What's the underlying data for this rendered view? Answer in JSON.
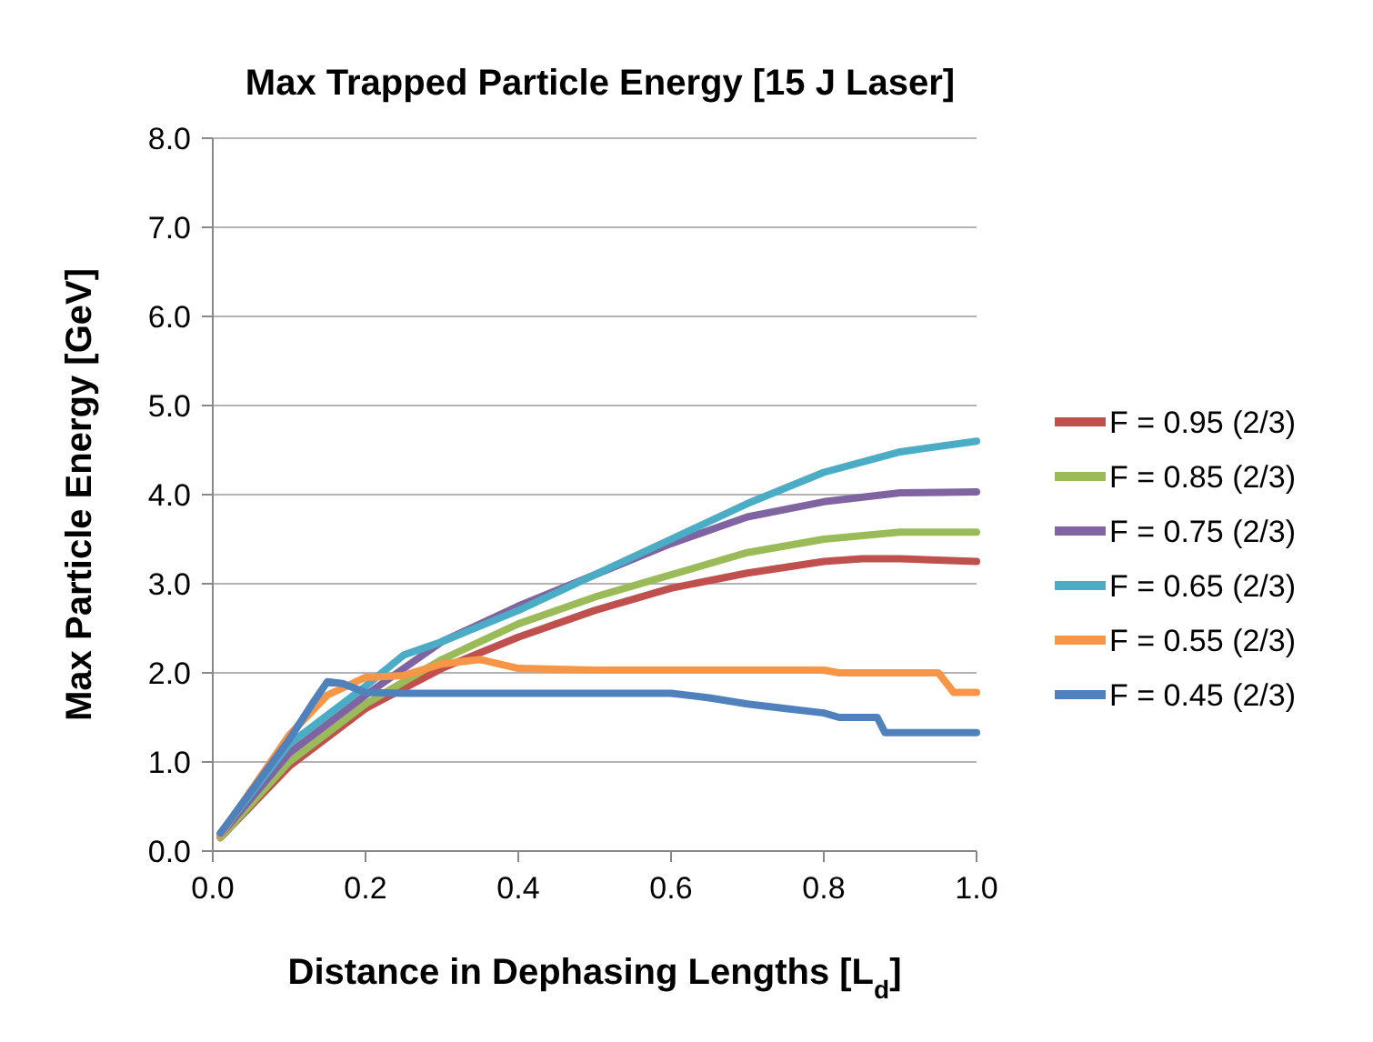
{
  "chart_data": {
    "type": "line",
    "title": "Max Trapped Particle Energy [15 J Laser]",
    "xlabel": "Distance in Dephasing Lengths [L$_{d}$]",
    "ylabel": "Max Particle Energy [GeV]",
    "xlim": [
      0,
      1
    ],
    "xticks": [
      {
        "value": 0,
        "label": "0.0"
      },
      {
        "value": 0.2,
        "label": "0.2"
      },
      {
        "value": 0.4,
        "label": "0.4"
      },
      {
        "value": 0.6,
        "label": "0.6"
      },
      {
        "value": 0.8,
        "label": "0.8"
      },
      {
        "value": 1,
        "label": "1.0"
      }
    ],
    "ylim": [
      0,
      8
    ],
    "yticks": [
      {
        "value": 0,
        "label": "0.0"
      },
      {
        "value": 1,
        "label": "1.0"
      },
      {
        "value": 2,
        "label": "2.0"
      },
      {
        "value": 3,
        "label": "3.0"
      },
      {
        "value": 4,
        "label": "4.0"
      },
      {
        "value": 5,
        "label": "5.0"
      },
      {
        "value": 6,
        "label": "6.0"
      },
      {
        "value": 7,
        "label": "7.0"
      },
      {
        "value": 8,
        "label": "8.0"
      }
    ],
    "grid": "y",
    "legend": "right",
    "marker": "none",
    "line_style": "solid",
    "series": [
      {
        "name": "F = 0.95 (2/3)",
        "color": "#c0504d",
        "x": [
          0.01,
          0.1,
          0.2,
          0.3,
          0.4,
          0.5,
          0.6,
          0.7,
          0.8,
          0.85,
          0.9,
          1.0
        ],
        "values": [
          0.15,
          0.95,
          1.6,
          2.05,
          2.4,
          2.7,
          2.95,
          3.12,
          3.25,
          3.28,
          3.28,
          3.25
        ]
      },
      {
        "name": "F = 0.85 (2/3)",
        "color": "#9bbb59",
        "x": [
          0.01,
          0.1,
          0.2,
          0.3,
          0.4,
          0.5,
          0.6,
          0.7,
          0.8,
          0.9,
          1.0
        ],
        "values": [
          0.15,
          1.0,
          1.65,
          2.15,
          2.55,
          2.85,
          3.1,
          3.35,
          3.5,
          3.58,
          3.58
        ]
      },
      {
        "name": "F = 0.75 (2/3)",
        "color": "#8064a2",
        "x": [
          0.01,
          0.1,
          0.2,
          0.3,
          0.4,
          0.5,
          0.6,
          0.7,
          0.8,
          0.9,
          1.0
        ],
        "values": [
          0.18,
          1.1,
          1.75,
          2.35,
          2.75,
          3.1,
          3.45,
          3.75,
          3.92,
          4.02,
          4.03
        ]
      },
      {
        "name": "F = 0.65 (2/3)",
        "color": "#4bacc6",
        "x": [
          0.01,
          0.1,
          0.2,
          0.25,
          0.3,
          0.4,
          0.5,
          0.6,
          0.7,
          0.8,
          0.9,
          1.0
        ],
        "values": [
          0.2,
          1.2,
          1.85,
          2.2,
          2.35,
          2.7,
          3.1,
          3.5,
          3.9,
          4.25,
          4.48,
          4.6
        ]
      },
      {
        "name": "F = 0.55 (2/3)",
        "color": "#f79646",
        "x": [
          0.01,
          0.1,
          0.15,
          0.2,
          0.25,
          0.3,
          0.35,
          0.4,
          0.5,
          0.6,
          0.8,
          0.82,
          0.95,
          0.97,
          1.0
        ],
        "values": [
          0.18,
          1.3,
          1.75,
          1.95,
          1.97,
          2.1,
          2.15,
          2.05,
          2.03,
          2.03,
          2.03,
          2.0,
          2.0,
          1.78,
          1.78
        ]
      },
      {
        "name": "F = 0.45 (2/3)",
        "color": "#4f81bd",
        "x": [
          0.01,
          0.1,
          0.13,
          0.15,
          0.17,
          0.2,
          0.25,
          0.6,
          0.65,
          0.7,
          0.75,
          0.8,
          0.82,
          0.87,
          0.88,
          1.0
        ],
        "values": [
          0.2,
          1.25,
          1.65,
          1.9,
          1.88,
          1.78,
          1.77,
          1.77,
          1.72,
          1.65,
          1.6,
          1.55,
          1.5,
          1.5,
          1.33,
          1.33
        ]
      }
    ]
  }
}
